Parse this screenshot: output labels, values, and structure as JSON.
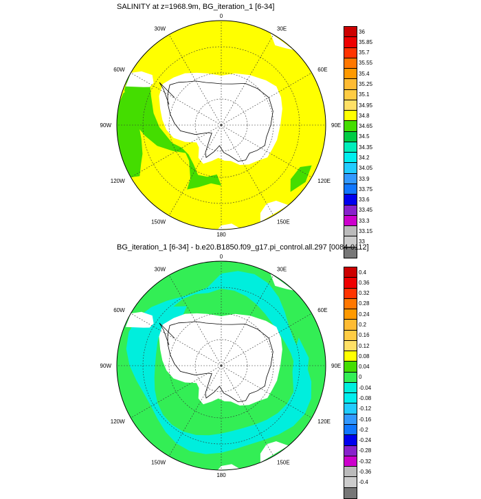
{
  "panels": [
    {
      "id": "top",
      "title": "SALINITY at z=1968.9m, BG_iteration_1 [6-34]",
      "dominant_fill": "#ffff00",
      "secondary_fill": "#44dd00",
      "colorbar": {
        "colors": [
          "#cc0000",
          "#ee0000",
          "#ff3300",
          "#ff7700",
          "#ff9900",
          "#ffbb33",
          "#ffcc44",
          "#ffe066",
          "#ffff00",
          "#44dd00",
          "#00cc44",
          "#00eebb",
          "#00eeee",
          "#22ccff",
          "#3399ff",
          "#1177ff",
          "#0000ee",
          "#8822cc",
          "#cc00cc",
          "#bbbbbb",
          "#cccccc",
          "#777777"
        ],
        "labels": [
          "36",
          "35.85",
          "35.7",
          "35.55",
          "35.4",
          "35.25",
          "35.1",
          "34.95",
          "34.8",
          "34.65",
          "34.5",
          "34.35",
          "34.2",
          "34.05",
          "33.9",
          "33.75",
          "33.6",
          "33.45",
          "33.3",
          "33.15",
          "33"
        ]
      }
    },
    {
      "id": "bottom",
      "title": "BG_iteration_1 [6-34] - b.e20.B1850.f09_g17.pi_control.all.297 [0084-0112]",
      "dominant_fill": "#33ee55",
      "secondary_fill": "#00eedd",
      "colorbar": {
        "colors": [
          "#cc0000",
          "#ee0000",
          "#ff3300",
          "#ff7700",
          "#ff9900",
          "#ffbb33",
          "#ffcc44",
          "#ffe066",
          "#ffff00",
          "#44dd00",
          "#33ee55",
          "#00eedd",
          "#00eeee",
          "#22ccff",
          "#3399ff",
          "#1177ff",
          "#0000ee",
          "#8822cc",
          "#cc00cc",
          "#bbbbbb",
          "#cccccc",
          "#777777"
        ],
        "labels": [
          "0.4",
          "0.36",
          "0.32",
          "0.28",
          "0.24",
          "0.2",
          "0.16",
          "0.12",
          "0.08",
          "0.04",
          "0",
          "-0.04",
          "-0.08",
          "-0.12",
          "-0.16",
          "-0.2",
          "-0.24",
          "-0.28",
          "-0.32",
          "-0.36",
          "-0.4"
        ]
      }
    }
  ],
  "longitude_labels": [
    "0",
    "30E",
    "60E",
    "90E",
    "120E",
    "150E",
    "180",
    "150W",
    "120W",
    "90W",
    "60W",
    "30W"
  ],
  "colors": {
    "land": "#ffffff",
    "outline": "#000000",
    "grid": "#333333"
  }
}
